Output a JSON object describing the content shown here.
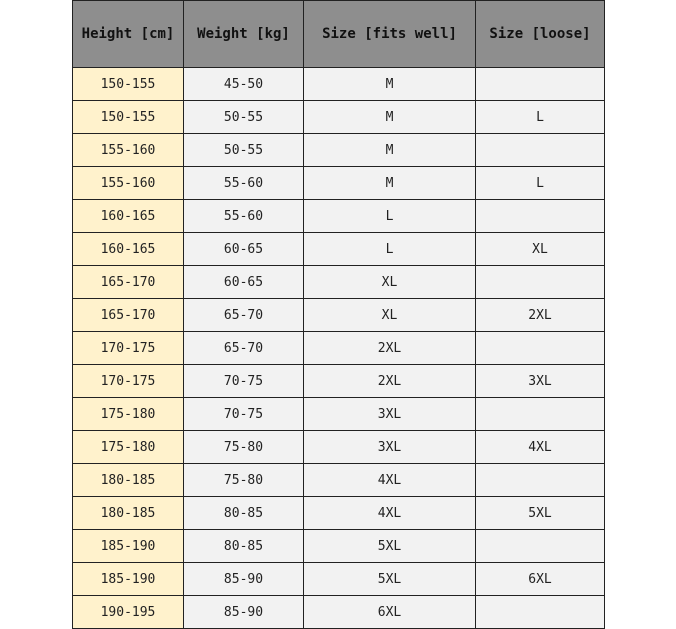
{
  "table": {
    "headers": [
      "Height [cm]",
      "Weight [kg]",
      "Size [fits well]",
      "Size [loose]"
    ],
    "rows": [
      [
        "150-155",
        "45-50",
        "M",
        ""
      ],
      [
        "150-155",
        "50-55",
        "M",
        "L"
      ],
      [
        "155-160",
        "50-55",
        "M",
        ""
      ],
      [
        "155-160",
        "55-60",
        "M",
        "L"
      ],
      [
        "160-165",
        "55-60",
        "L",
        ""
      ],
      [
        "160-165",
        "60-65",
        "L",
        "XL"
      ],
      [
        "165-170",
        "60-65",
        "XL",
        ""
      ],
      [
        "165-170",
        "65-70",
        "XL",
        "2XL"
      ],
      [
        "170-175",
        "65-70",
        "2XL",
        ""
      ],
      [
        "170-175",
        "70-75",
        "2XL",
        "3XL"
      ],
      [
        "175-180",
        "70-75",
        "3XL",
        ""
      ],
      [
        "175-180",
        "75-80",
        "3XL",
        "4XL"
      ],
      [
        "180-185",
        "75-80",
        "4XL",
        ""
      ],
      [
        "180-185",
        "80-85",
        "4XL",
        "5XL"
      ],
      [
        "185-190",
        "80-85",
        "5XL",
        ""
      ],
      [
        "185-190",
        "85-90",
        "5XL",
        "6XL"
      ],
      [
        "190-195",
        "85-90",
        "6XL",
        ""
      ]
    ]
  },
  "colors": {
    "header": "#8e8e8e",
    "height_column": "#fff2cc",
    "cells": "#f2f2f2"
  }
}
